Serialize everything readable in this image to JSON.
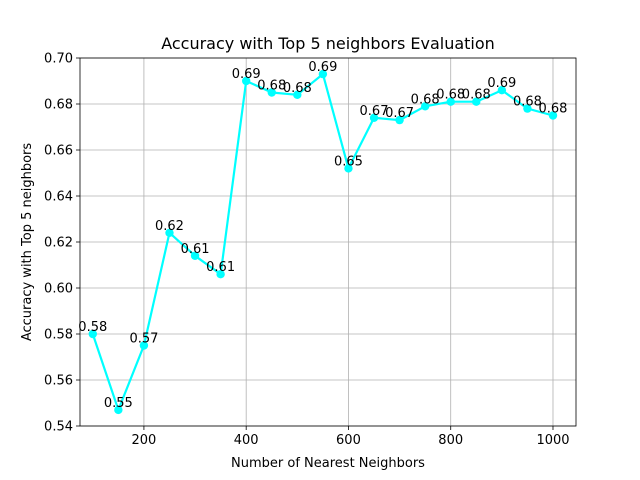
{
  "chart_data": {
    "type": "line",
    "title": "Accuracy with Top 5 neighbors Evaluation",
    "xlabel": "Number of Nearest Neighbors",
    "ylabel": "Accuracy with Top 5 neighbors",
    "xlim": [
      75,
      1045
    ],
    "ylim": [
      0.54,
      0.7
    ],
    "x_ticks": [
      200,
      400,
      600,
      800,
      1000
    ],
    "y_ticks": [
      0.54,
      0.56,
      0.58,
      0.6,
      0.62,
      0.64,
      0.66,
      0.68,
      0.7
    ],
    "x_tick_labels": [
      "200",
      "400",
      "600",
      "800",
      "1000"
    ],
    "y_tick_labels": [
      "0.54",
      "0.56",
      "0.58",
      "0.60",
      "0.62",
      "0.64",
      "0.66",
      "0.68",
      "0.70"
    ],
    "grid": true,
    "series": [
      {
        "color": "#00ffff",
        "x": [
          100,
          150,
          200,
          250,
          300,
          350,
          400,
          450,
          500,
          550,
          600,
          650,
          700,
          750,
          800,
          850,
          900,
          950,
          1000
        ],
        "y": [
          0.58,
          0.547,
          0.575,
          0.624,
          0.614,
          0.606,
          0.69,
          0.685,
          0.684,
          0.693,
          0.652,
          0.674,
          0.673,
          0.679,
          0.681,
          0.681,
          0.686,
          0.678,
          0.675
        ],
        "labels": [
          "0.58",
          "0.55",
          "0.57",
          "0.62",
          "0.61",
          "0.61",
          "0.69",
          "0.68",
          "0.68",
          "0.69",
          "0.65",
          "0.67",
          "0.67",
          "0.68",
          "0.68",
          "0.68",
          "0.69",
          "0.68",
          "0.68"
        ]
      }
    ]
  }
}
